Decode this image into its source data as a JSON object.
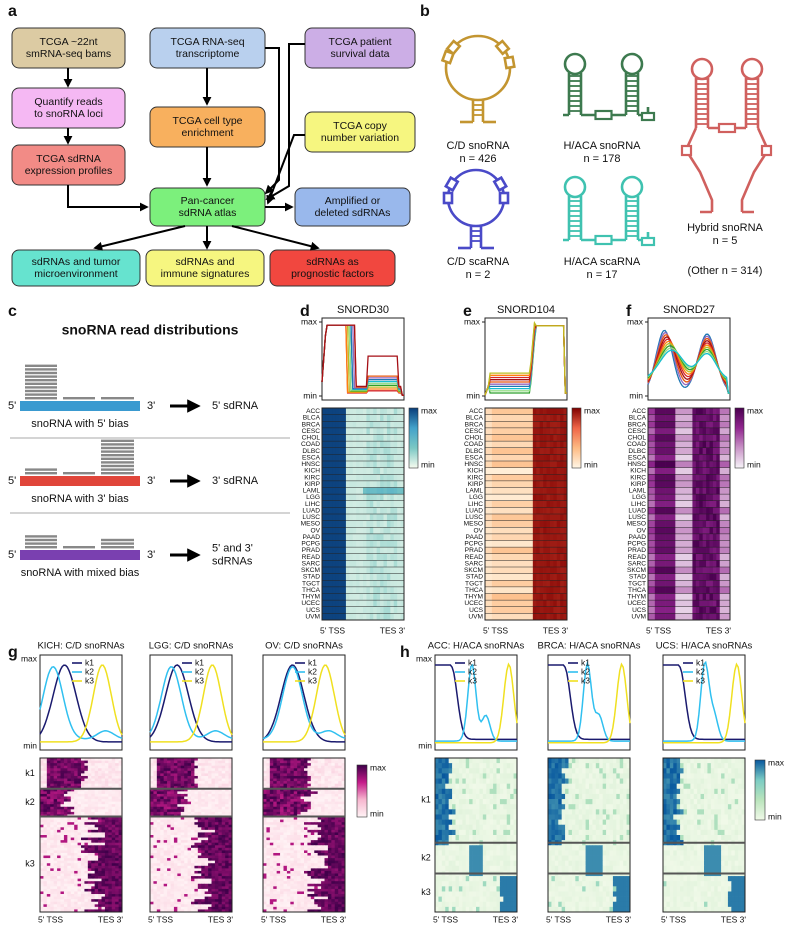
{
  "panel_labels": [
    "a",
    "b",
    "c",
    "d",
    "e",
    "f",
    "g",
    "h"
  ],
  "flowchart": {
    "nodes": [
      {
        "lines": [
          "TCGA ~22nt",
          "smRNA-seq bams"
        ]
      },
      {
        "lines": [
          "TCGA RNA-seq",
          "transcriptome"
        ]
      },
      {
        "lines": [
          "TCGA patient",
          "survival data"
        ]
      },
      {
        "lines": [
          "Quantify reads",
          "to snoRNA loci"
        ]
      },
      {
        "lines": [
          "TCGA cell type",
          "enrichment"
        ]
      },
      {
        "lines": [
          "TCGA copy",
          "number variation"
        ]
      },
      {
        "lines": [
          "TCGA sdRNA",
          "expression profiles"
        ]
      },
      {
        "lines": [
          "Pan-cancer",
          "sdRNA atlas"
        ]
      },
      {
        "lines": [
          "Amplified or",
          "deleted sdRNAs"
        ]
      },
      {
        "lines": [
          "sdRNAs and tumor",
          "microenvironment"
        ]
      },
      {
        "lines": [
          "sdRNAs and",
          "immune signatures"
        ]
      },
      {
        "lines": [
          "sdRNAs as",
          "prognostic factors"
        ]
      }
    ]
  },
  "snorna_classes": {
    "classes": [
      {
        "name": "C/D snoRNA",
        "count": "n = 426"
      },
      {
        "name": "H/ACA snoRNA",
        "count": "n = 178"
      },
      {
        "name": "C/D scaRNA",
        "count": "n = 2"
      },
      {
        "name": "H/ACA scaRNA",
        "count": "n = 17"
      },
      {
        "name": "Hybrid snoRNA",
        "count": "n = 5"
      }
    ],
    "other": "(Other n = 314)"
  },
  "read_distributions": {
    "title": "snoRNA read distributions",
    "five_prime": "5'",
    "three_prime": "3'",
    "rows": [
      {
        "label": "snoRNA with 5' bias",
        "result": [
          "5' sdRNA"
        ]
      },
      {
        "label": "snoRNA with 3' bias",
        "result": [
          "3' sdRNA"
        ]
      },
      {
        "label": "snoRNA with mixed bias",
        "result": [
          "5' and 3'",
          "sdRNAs"
        ]
      }
    ]
  },
  "profiles": {
    "panels": [
      {
        "title": "SNORD30"
      },
      {
        "title": "SNORD104"
      },
      {
        "title": "SNORD27"
      }
    ],
    "max": "max",
    "min": "min",
    "cancer_types": [
      "ACC",
      "BLCA",
      "BRCA",
      "CESC",
      "CHOL",
      "COAD",
      "DLBC",
      "ESCA",
      "HNSC",
      "KICH",
      "KIRC",
      "KIRP",
      "LAML",
      "LGG",
      "LIHC",
      "LUAD",
      "LUSC",
      "MESO",
      "OV",
      "PAAD",
      "PCPG",
      "PRAD",
      "READ",
      "SARC",
      "SKCM",
      "STAD",
      "TGCT",
      "THCA",
      "THYM",
      "UCEC",
      "UCS",
      "UVM"
    ],
    "x_start": "5' TSS",
    "x_end": "TES 3'"
  },
  "clusters": {
    "panels": [
      {
        "title": "KICH: C/D snoRNAs"
      },
      {
        "title": "LGG: C/D snoRNAs"
      },
      {
        "title": "OV: C/D snoRNAs"
      },
      {
        "title": "ACC: H/ACA snoRNAs"
      },
      {
        "title": "BRCA: H/ACA snoRNAs"
      },
      {
        "title": "UCS: H/ACA snoRNAs"
      }
    ],
    "legend": [
      "k1",
      "k2",
      "k3"
    ]
  }
}
